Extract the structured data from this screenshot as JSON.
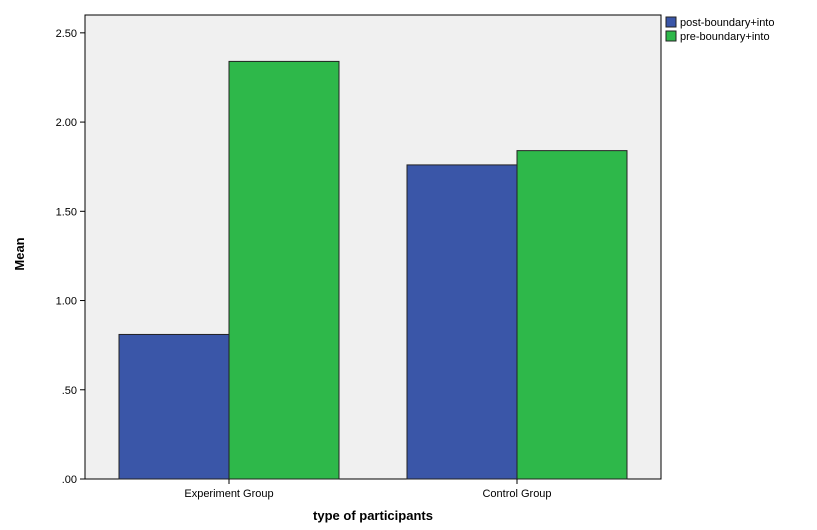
{
  "chart_data": {
    "type": "bar",
    "title": "",
    "xlabel": "type of participants",
    "ylabel": "Mean",
    "categories": [
      "Experiment Group",
      "Control Group"
    ],
    "series": [
      {
        "name": "post-boundary+into",
        "values": [
          0.81,
          1.76
        ],
        "color": "#3a56a8"
      },
      {
        "name": "pre-boundary+into",
        "values": [
          2.34,
          1.84
        ],
        "color": "#2eb84a"
      }
    ],
    "ylim": [
      0,
      2.6
    ],
    "yticks": [
      0,
      0.5,
      1.0,
      1.5,
      2.0,
      2.5
    ],
    "ytick_labels": [
      ".00",
      ".50",
      "1.00",
      "1.50",
      "2.00",
      "2.50"
    ],
    "legend": "top-right",
    "grid": false,
    "plot_background": "#f0f0f0"
  }
}
